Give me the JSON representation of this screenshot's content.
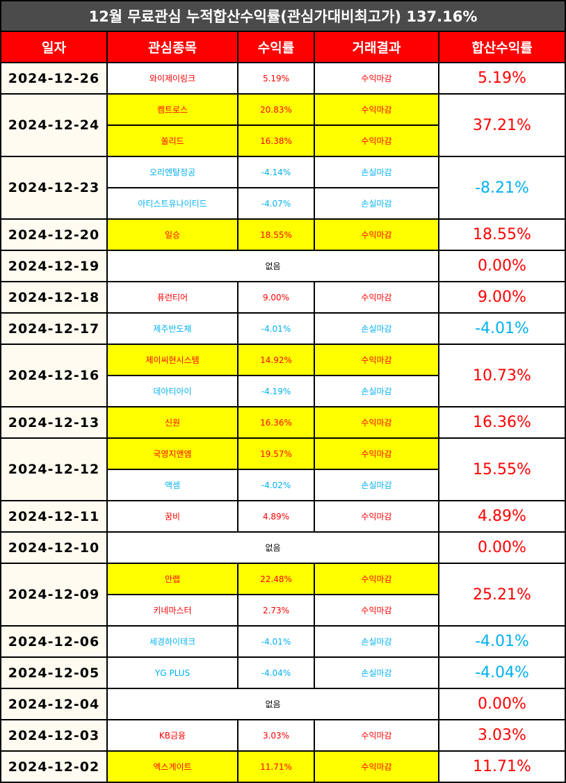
{
  "title": "12월 무료관심 누적합산수익률(관심가대비최고가) 137.16%",
  "headers": [
    "일자",
    "관심종목",
    "수익률",
    "거래결과",
    "합산수익률"
  ],
  "groups": [
    {
      "date": "2024-12-26",
      "total": "5.19%",
      "total_sign": "pos",
      "rows": [
        {
          "stock": "와이제이링크",
          "rate": "5.19%",
          "result": "수익마감",
          "sign": "pos",
          "highlight": false
        }
      ]
    },
    {
      "date": "2024-12-24",
      "total": "37.21%",
      "total_sign": "pos",
      "rows": [
        {
          "stock": "켐트로스",
          "rate": "20.83%",
          "result": "수익마감",
          "sign": "pos",
          "highlight": true
        },
        {
          "stock": "쏠리드",
          "rate": "16.38%",
          "result": "수익마감",
          "sign": "pos",
          "highlight": true
        }
      ]
    },
    {
      "date": "2024-12-23",
      "total": "-8.21%",
      "total_sign": "neg",
      "rows": [
        {
          "stock": "오리엔탈정공",
          "rate": "-4.14%",
          "result": "손실마감",
          "sign": "neg",
          "highlight": false
        },
        {
          "stock": "아티스트유나이티드",
          "rate": "-4.07%",
          "result": "손실마감",
          "sign": "neg",
          "highlight": false
        }
      ]
    },
    {
      "date": "2024-12-20",
      "total": "18.55%",
      "total_sign": "pos",
      "rows": [
        {
          "stock": "일승",
          "rate": "18.55%",
          "result": "수익마감",
          "sign": "pos",
          "highlight": true
        }
      ]
    },
    {
      "date": "2024-12-19",
      "total": "0.00%",
      "total_sign": "pos",
      "none": "없음",
      "rows": []
    },
    {
      "date": "2024-12-18",
      "total": "9.00%",
      "total_sign": "pos",
      "rows": [
        {
          "stock": "퓨런티어",
          "rate": "9.00%",
          "result": "수익마감",
          "sign": "pos",
          "highlight": false
        }
      ]
    },
    {
      "date": "2024-12-17",
      "total": "-4.01%",
      "total_sign": "neg",
      "rows": [
        {
          "stock": "제주반도체",
          "rate": "-4.01%",
          "result": "손실마감",
          "sign": "neg",
          "highlight": false
        }
      ]
    },
    {
      "date": "2024-12-16",
      "total": "10.73%",
      "total_sign": "pos",
      "rows": [
        {
          "stock": "제이씨현시스템",
          "rate": "14.92%",
          "result": "수익마감",
          "sign": "pos",
          "highlight": true
        },
        {
          "stock": "데아티아이",
          "rate": "-4.19%",
          "result": "손실마감",
          "sign": "neg",
          "highlight": false
        }
      ]
    },
    {
      "date": "2024-12-13",
      "total": "16.36%",
      "total_sign": "pos",
      "rows": [
        {
          "stock": "신원",
          "rate": "16.36%",
          "result": "수익마감",
          "sign": "pos",
          "highlight": true
        }
      ]
    },
    {
      "date": "2024-12-12",
      "total": "15.55%",
      "total_sign": "pos",
      "rows": [
        {
          "stock": "국영지앤엠",
          "rate": "19.57%",
          "result": "수익마감",
          "sign": "pos",
          "highlight": true
        },
        {
          "stock": "액셈",
          "rate": "-4.02%",
          "result": "손실마감",
          "sign": "neg",
          "highlight": false
        }
      ]
    },
    {
      "date": "2024-12-11",
      "total": "4.89%",
      "total_sign": "pos",
      "rows": [
        {
          "stock": "꿈비",
          "rate": "4.89%",
          "result": "수익마감",
          "sign": "pos",
          "highlight": false
        }
      ]
    },
    {
      "date": "2024-12-10",
      "total": "0.00%",
      "total_sign": "pos",
      "none": "없음",
      "rows": []
    },
    {
      "date": "2024-12-09",
      "total": "25.21%",
      "total_sign": "pos",
      "rows": [
        {
          "stock": "안랩",
          "rate": "22.48%",
          "result": "수익마감",
          "sign": "pos",
          "highlight": true
        },
        {
          "stock": "키네마스터",
          "rate": "2.73%",
          "result": "수익마감",
          "sign": "pos",
          "highlight": false
        }
      ]
    },
    {
      "date": "2024-12-06",
      "total": "-4.01%",
      "total_sign": "neg",
      "rows": [
        {
          "stock": "세경하이테크",
          "rate": "-4.01%",
          "result": "손실마감",
          "sign": "neg",
          "highlight": false
        }
      ]
    },
    {
      "date": "2024-12-05",
      "total": "-4.04%",
      "total_sign": "neg",
      "rows": [
        {
          "stock": "YG PLUS",
          "rate": "-4.04%",
          "result": "손실마감",
          "sign": "neg",
          "highlight": false
        }
      ]
    },
    {
      "date": "2024-12-04",
      "total": "0.00%",
      "total_sign": "pos",
      "none": "없음",
      "rows": []
    },
    {
      "date": "2024-12-03",
      "total": "3.03%",
      "total_sign": "pos",
      "rows": [
        {
          "stock": "KB금융",
          "rate": "3.03%",
          "result": "수익마감",
          "sign": "pos",
          "highlight": false
        }
      ]
    },
    {
      "date": "2024-12-02",
      "total": "11.71%",
      "total_sign": "pos",
      "rows": [
        {
          "stock": "엑스게이트",
          "rate": "11.71%",
          "result": "수익마감",
          "sign": "pos",
          "highlight": true
        }
      ]
    }
  ],
  "colors": {
    "header_bg": "#ff0000",
    "title_bg": "#4b4b4b",
    "profit": "#ff0000",
    "loss": "#00b0f0",
    "highlight": "#ffff00",
    "date_bg": "#fffbf0"
  }
}
